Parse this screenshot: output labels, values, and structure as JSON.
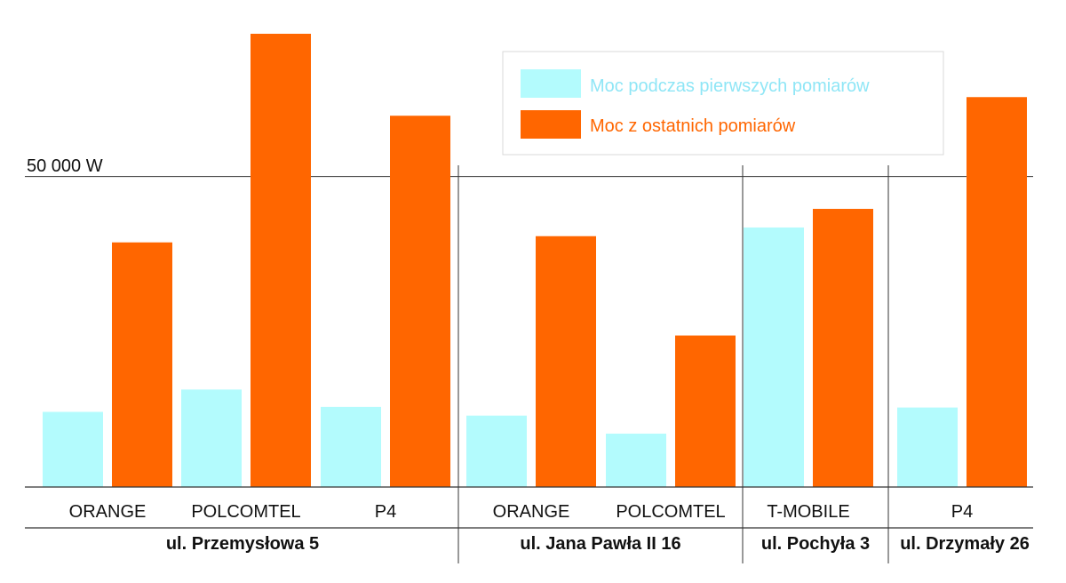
{
  "chart_data": {
    "type": "bar",
    "title": "",
    "xlabel": "",
    "ylabel": "",
    "y_tick_label": "50 000 W",
    "y_tick_value": 50000,
    "ylim": [
      0,
      73000
    ],
    "grid": "single horizontal line at 50 000 W",
    "legend_position": "top-right",
    "categories": [
      "ORANGE",
      "POLCOMTEL",
      "P4",
      "ORANGE",
      "POLCOMTEL",
      "T-MOBILE",
      "P4"
    ],
    "groups": [
      {
        "name": "ul. Przemysłowa 5",
        "categories": [
          "ORANGE",
          "POLCOMTEL",
          "P4"
        ]
      },
      {
        "name": "ul. Jana Pawła II 16",
        "categories": [
          "ORANGE",
          "POLCOMTEL"
        ]
      },
      {
        "name": "ul. Pochyła 3",
        "categories": [
          "T-MOBILE"
        ]
      },
      {
        "name": "ul. Drzymały 26",
        "categories": [
          "P4"
        ]
      }
    ],
    "series": [
      {
        "name": "Moc podczas pierwszych pomiarów",
        "color": "#b3fbfd",
        "values": [
          12100,
          15700,
          12900,
          11500,
          8600,
          41800,
          12800
        ]
      },
      {
        "name": "Moc z ostatnich pomiarów",
        "color": "#ff6600",
        "values": [
          39400,
          73000,
          59800,
          40400,
          24400,
          44800,
          62800
        ]
      }
    ]
  }
}
